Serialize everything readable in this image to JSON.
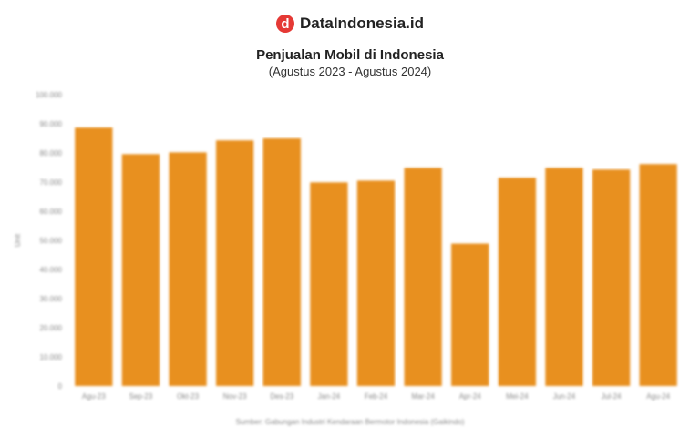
{
  "brand": {
    "name": "DataIndonesia.id",
    "logo_letter": "d",
    "color": "#e53935"
  },
  "chart_data": {
    "type": "bar",
    "title": "Penjualan Mobil di Indonesia",
    "subtitle": "(Agustus 2023 - Agustus 2024)",
    "ylabel": "Unit",
    "xlabel": "",
    "source": "Sumber: Gabungan Industri Kendaraan Bermotor Indonesia (Gaikindo)",
    "categories": [
      "Agu-23",
      "Sep-23",
      "Okt-23",
      "Nov-23",
      "Des-23",
      "Jan-24",
      "Feb-24",
      "Mar-24",
      "Apr-24",
      "Mei-24",
      "Jun-24",
      "Jul-24",
      "Agu-24"
    ],
    "values": [
      88700,
      79600,
      80200,
      84300,
      85000,
      69900,
      70500,
      74900,
      48900,
      71500,
      74900,
      74300,
      76200
    ],
    "ylim": [
      0,
      100000
    ],
    "yticks": [
      "0",
      "10.000",
      "20.000",
      "30.000",
      "40.000",
      "50.000",
      "60.000",
      "70.000",
      "80.000",
      "90.000",
      "100.000"
    ],
    "bar_color": "#e8901f",
    "grid": false
  }
}
